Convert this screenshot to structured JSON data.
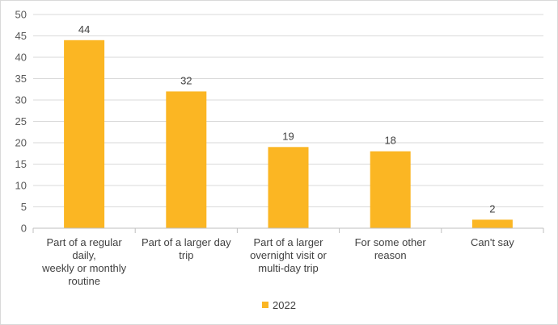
{
  "chart_data": {
    "type": "bar",
    "categories": [
      "Part of a regular daily, weekly or monthly routine",
      "Part of a larger day trip",
      "Part of a larger overnight visit or multi-day trip",
      "For some other reason",
      "Can't say"
    ],
    "category_lines": [
      [
        "Part of a regular",
        "daily,",
        "weekly or monthly",
        "routine"
      ],
      [
        "Part of a larger day",
        "trip"
      ],
      [
        "Part of a larger",
        "overnight visit or",
        "multi-day trip"
      ],
      [
        "For some other",
        "reason"
      ],
      [
        "Can't say"
      ]
    ],
    "series": [
      {
        "name": "2022",
        "values": [
          44,
          32,
          19,
          18,
          2
        ],
        "color": "#FBB623"
      }
    ],
    "ylim": [
      0,
      50
    ],
    "yticks": [
      0,
      5,
      10,
      15,
      20,
      25,
      30,
      35,
      40,
      45,
      50
    ],
    "grid": true,
    "legend_position": "bottom",
    "title": "",
    "xlabel": "",
    "ylabel": ""
  }
}
